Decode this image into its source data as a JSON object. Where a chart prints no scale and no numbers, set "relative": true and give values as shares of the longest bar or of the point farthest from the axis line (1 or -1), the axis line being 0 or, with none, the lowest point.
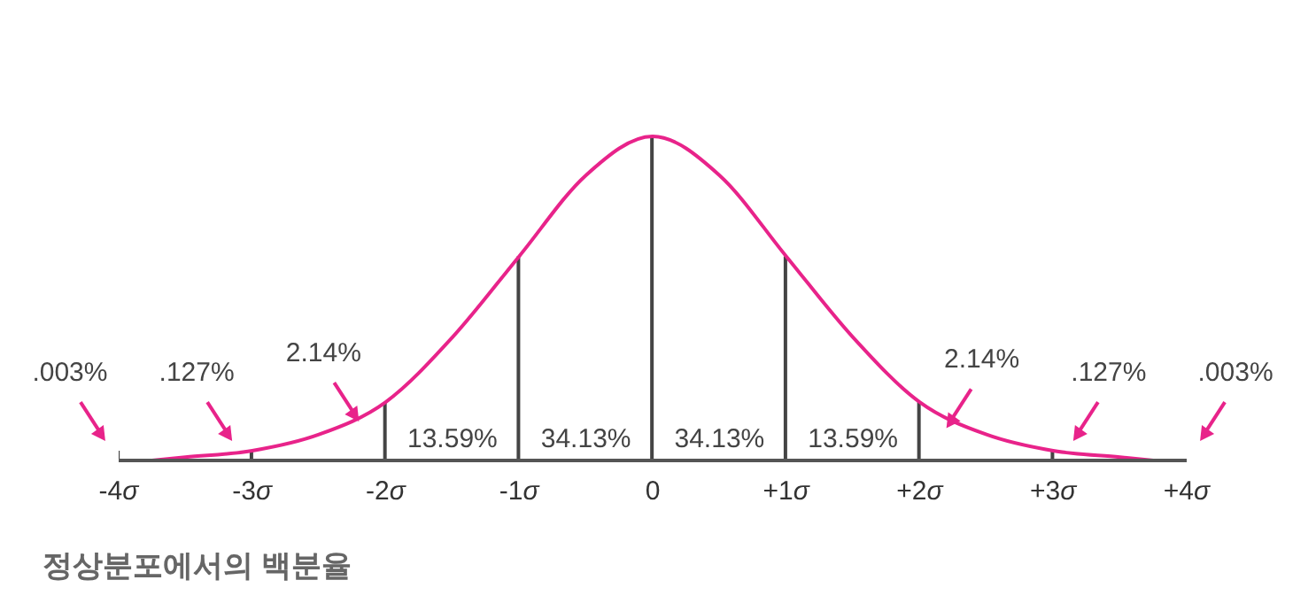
{
  "chart_data": {
    "type": "line",
    "relative": true,
    "xlim": [
      -4,
      4
    ],
    "xticks": [
      {
        "value": -4,
        "label": "-4σ"
      },
      {
        "value": -3,
        "label": "-3σ"
      },
      {
        "value": -2,
        "label": "-2σ"
      },
      {
        "value": -1,
        "label": "-1σ"
      },
      0,
      {
        "value": 1,
        "label": "+1σ"
      },
      {
        "value": 2,
        "label": "+2σ"
      },
      {
        "value": 3,
        "label": "+3σ"
      },
      {
        "value": 4,
        "label": "+4σ"
      }
    ],
    "series": [
      {
        "color": "#e8238a",
        "x": [
          -3.75,
          -3.5,
          -3,
          -2.5,
          -2,
          -1.5,
          -1,
          -0.5,
          0,
          0.5,
          1,
          1.5,
          2,
          2.5,
          3,
          3.5,
          3.75
        ],
        "values": [
          0,
          0.01,
          0.03,
          0.08,
          0.18,
          0.38,
          0.63,
          0.88,
          1,
          0.88,
          0.63,
          0.38,
          0.18,
          0.08,
          0.03,
          0.01,
          0
        ]
      },
      {
        "type": "bar",
        "color": "#444444",
        "x": [
          -4,
          -3,
          -2,
          -1,
          0,
          1,
          2,
          3
        ],
        "values": [
          0.03,
          0.03,
          0.18,
          0.63,
          1,
          0.63,
          0.18,
          0.03
        ]
      }
    ],
    "annotations": [
      ".003%",
      ".127%",
      "2.14%",
      "13.59%",
      "34.13%",
      "34.13%",
      "13.59%",
      "2.14%",
      ".127%",
      ".003%",
      "정상분포에서의 백분율"
    ]
  }
}
